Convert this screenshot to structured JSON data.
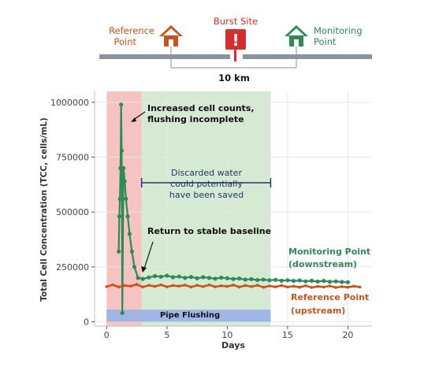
{
  "colors": {
    "reference": "#c8531c",
    "monitoring": "#2e8b57",
    "burst": "#d32f2f",
    "pipe": "#8a9399",
    "flush_band": "#f4b9b9",
    "saved_band": "#cfe5cb",
    "pipe_flushing": "#9db3e6"
  },
  "diagram": {
    "reference_label_1": "Reference",
    "reference_label_2": "Point",
    "reference_icon": "house-icon",
    "burst_label": "Burst Site",
    "burst_icon": "exclamation-icon",
    "burst_glyph": "!",
    "monitoring_label_1": "Monitoring",
    "monitoring_label_2": "Point",
    "monitoring_icon": "house-icon",
    "distance_label": "10 km"
  },
  "annotations": {
    "spike_1": "Increased cell counts,",
    "spike_2": "flushing incomplete",
    "discard_1": "Discarded water",
    "discard_2": "could potentially",
    "discard_3": "have been saved",
    "baseline": "Return to stable baseline",
    "pipe_flushing": "Pipe Flushing",
    "monitoring_1": "Monitoring Point",
    "monitoring_2": "(downstream)",
    "reference_1": "Reference Point",
    "reference_2": "(upstream)"
  },
  "chart_data": {
    "type": "line",
    "xlabel": "Days",
    "ylabel": "Total Cell Concentration (TCC, cells/mL)",
    "xlim": [
      -1,
      22
    ],
    "ylim": [
      -20000,
      1050000
    ],
    "x_ticks": [
      0,
      5,
      10,
      15,
      20
    ],
    "x_tick_labels": [
      "0",
      "5",
      "10",
      "15",
      "20"
    ],
    "y_ticks": [
      0,
      250000,
      500000,
      750000,
      1000000
    ],
    "y_tick_labels": [
      "0",
      "250000",
      "500000",
      "750000",
      "1000000"
    ],
    "grid": true,
    "shaded_regions": [
      {
        "x_start": 0,
        "x_end": 2.9,
        "color": "pink"
      },
      {
        "x_start": 2.9,
        "x_end": 13.6,
        "color": "green"
      },
      {
        "x_start": 0,
        "x_end": 13.6,
        "y_start": 0,
        "y_end": 55000,
        "color": "blue"
      }
    ],
    "discard_bracket": {
      "x_start": 2.9,
      "x_end": 13.6
    },
    "series": [
      {
        "key": "monitoring",
        "x": [
          1.0,
          1.05,
          1.1,
          1.15,
          1.2,
          1.25,
          1.3,
          1.4,
          1.5,
          1.6,
          1.75,
          1.9,
          2.1,
          2.3,
          2.6,
          3.0,
          3.5,
          4.0,
          4.5,
          5.0,
          5.5,
          6.0,
          6.5,
          7.0,
          7.5,
          8.0,
          8.5,
          9.0,
          9.5,
          10.0,
          10.5,
          11.0,
          11.5,
          12.0,
          12.5,
          13.0,
          13.5,
          14.0,
          14.5,
          15.0,
          15.5,
          16.0,
          16.5,
          17.0,
          17.5,
          18.0,
          18.5,
          19.0,
          19.5,
          20.0
        ],
        "y": [
          320000,
          480000,
          560000,
          700000,
          990000,
          780000,
          40000,
          700000,
          640000,
          560000,
          480000,
          400000,
          320000,
          250000,
          200000,
          195000,
          202000,
          208000,
          205000,
          210000,
          203000,
          206000,
          200000,
          204000,
          198000,
          203000,
          200000,
          196000,
          201000,
          198000,
          195000,
          197000,
          192000,
          194000,
          190000,
          192000,
          189000,
          191000,
          187000,
          189000,
          186000,
          188000,
          184000,
          187000,
          183000,
          186000,
          182000,
          184000,
          181000,
          180000
        ]
      },
      {
        "key": "reference",
        "x": [
          0,
          0.5,
          1.0,
          1.5,
          2.0,
          2.5,
          3.0,
          3.5,
          4.0,
          4.5,
          5.0,
          5.5,
          6.0,
          6.5,
          7.0,
          7.5,
          8.0,
          8.5,
          9.0,
          9.5,
          10.0,
          10.5,
          11.0,
          11.5,
          12.0,
          12.5,
          13.0,
          13.5,
          14.0,
          14.5,
          15.0,
          15.5,
          16.0,
          16.5,
          17.0,
          17.5,
          18.0,
          18.5,
          19.0,
          19.5,
          20.0,
          20.5,
          21.0
        ],
        "y": [
          160000,
          168000,
          158000,
          165000,
          162000,
          170000,
          158000,
          166000,
          161000,
          168000,
          159000,
          165000,
          162000,
          167000,
          158000,
          166000,
          160000,
          168000,
          159000,
          164000,
          161000,
          167000,
          158000,
          165000,
          160000,
          166000,
          157000,
          163000,
          159000,
          165000,
          158000,
          162000,
          157000,
          164000,
          156000,
          161000,
          158000,
          163000,
          156000,
          160000,
          157000,
          162000,
          158000
        ]
      }
    ]
  }
}
